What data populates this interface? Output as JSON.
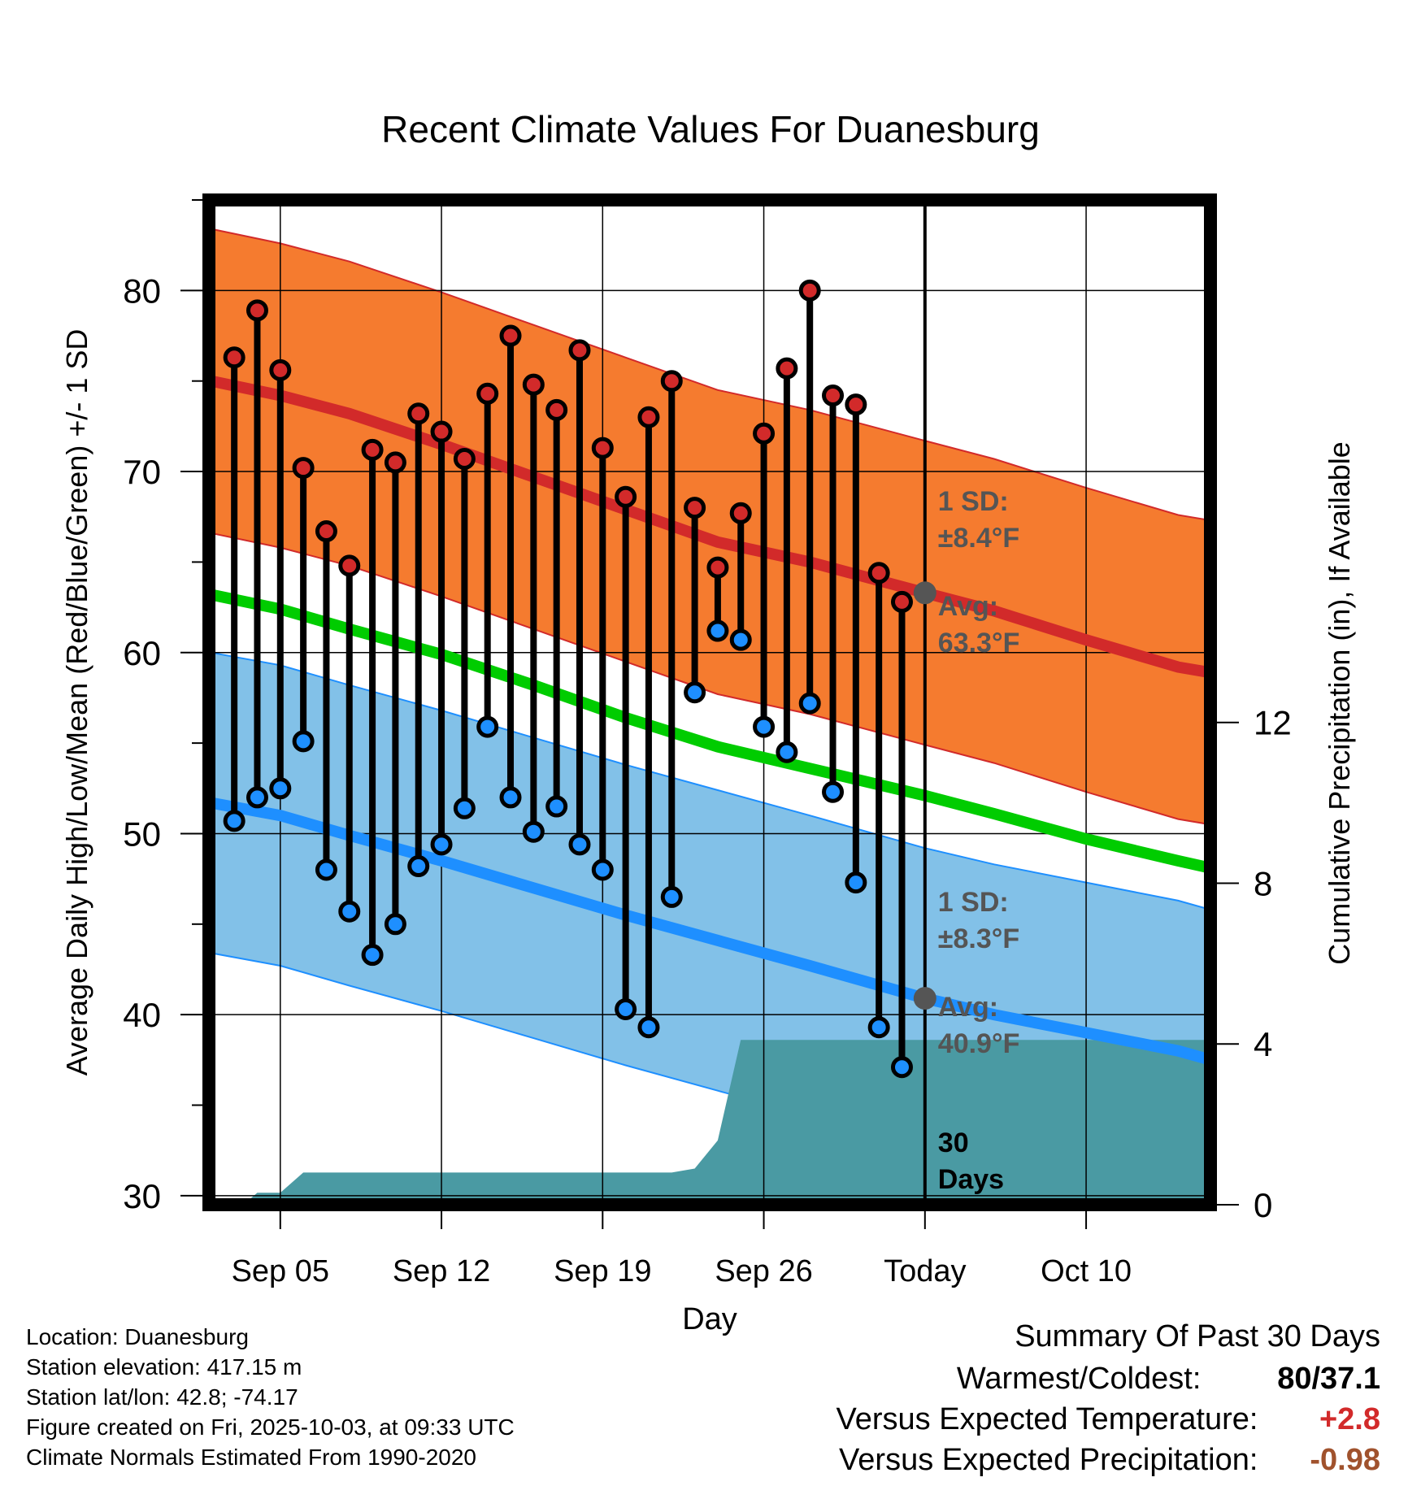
{
  "chart_data": {
    "type": "line",
    "title": "Recent Climate Values For Duanesburg",
    "xlabel": "Day",
    "ylabel": "Average Daily High/Low/Mean (Red/Blue/Green) +/- 1 SD",
    "y2label": "Cumulative Precipitation (in), If Available",
    "ylim": [
      29.5,
      85
    ],
    "y2lim": [
      0,
      25
    ],
    "xlim": [
      1.9,
      45.4
    ],
    "yticks": [
      30,
      40,
      50,
      60,
      70,
      80
    ],
    "y2ticks": [
      0,
      4,
      8,
      12
    ],
    "xticks": [
      {
        "day": 5,
        "label": "Sep 05"
      },
      {
        "day": 12,
        "label": "Sep 12"
      },
      {
        "day": 19,
        "label": "Sep 19"
      },
      {
        "day": 26,
        "label": "Sep 26"
      },
      {
        "day": 33,
        "label": "Today"
      },
      {
        "day": 40,
        "label": "Oct 10"
      }
    ],
    "today_day": 33,
    "days": [
      3,
      4,
      5,
      6,
      7,
      8,
      9,
      10,
      11,
      12,
      13,
      14,
      15,
      16,
      17,
      18,
      19,
      20,
      21,
      22,
      23,
      24,
      25,
      26,
      27,
      28,
      29,
      30,
      31,
      32
    ],
    "daily_high": [
      76.3,
      78.9,
      75.6,
      70.2,
      66.7,
      64.8,
      71.2,
      70.5,
      73.2,
      72.2,
      70.7,
      74.3,
      77.5,
      74.8,
      73.4,
      76.7,
      71.3,
      68.6,
      73.0,
      75.0,
      68.0,
      64.7,
      67.7,
      72.1,
      75.7,
      80.0,
      74.2,
      73.7,
      64.4,
      62.8
    ],
    "daily_low": [
      50.7,
      52.0,
      52.5,
      55.1,
      48.0,
      45.7,
      43.3,
      45.0,
      48.2,
      49.4,
      51.4,
      55.9,
      52.0,
      50.1,
      51.5,
      49.4,
      48.0,
      40.3,
      39.3,
      46.5,
      57.8,
      61.2,
      60.7,
      55.9,
      54.5,
      57.2,
      52.3,
      47.3,
      39.3,
      37.1
    ],
    "normal_high": [
      {
        "day": 2,
        "value": 75.0
      },
      {
        "day": 5,
        "value": 74.2
      },
      {
        "day": 8,
        "value": 73.2
      },
      {
        "day": 12,
        "value": 71.5
      },
      {
        "day": 16,
        "value": 69.7
      },
      {
        "day": 20,
        "value": 67.9
      },
      {
        "day": 24,
        "value": 66.1
      },
      {
        "day": 28,
        "value": 65.0
      },
      {
        "day": 33,
        "value": 63.3
      },
      {
        "day": 36,
        "value": 62.3
      },
      {
        "day": 40,
        "value": 60.7
      },
      {
        "day": 44,
        "value": 59.2
      },
      {
        "day": 45.4,
        "value": 58.9
      }
    ],
    "normal_low": [
      {
        "day": 2,
        "value": 51.7
      },
      {
        "day": 5,
        "value": 51.0
      },
      {
        "day": 8,
        "value": 49.9
      },
      {
        "day": 12,
        "value": 48.5
      },
      {
        "day": 16,
        "value": 47.0
      },
      {
        "day": 20,
        "value": 45.5
      },
      {
        "day": 24,
        "value": 44.1
      },
      {
        "day": 28,
        "value": 42.7
      },
      {
        "day": 33,
        "value": 40.9
      },
      {
        "day": 36,
        "value": 40.0
      },
      {
        "day": 40,
        "value": 39.0
      },
      {
        "day": 44,
        "value": 38.0
      },
      {
        "day": 45.4,
        "value": 37.5
      }
    ],
    "normal_mean": [
      {
        "day": 2,
        "value": 63.2
      },
      {
        "day": 5,
        "value": 62.4
      },
      {
        "day": 8,
        "value": 61.3
      },
      {
        "day": 12,
        "value": 59.9
      },
      {
        "day": 16,
        "value": 58.2
      },
      {
        "day": 20,
        "value": 56.4
      },
      {
        "day": 24,
        "value": 54.8
      },
      {
        "day": 28,
        "value": 53.6
      },
      {
        "day": 33,
        "value": 52.1
      },
      {
        "day": 36,
        "value": 51.1
      },
      {
        "day": 40,
        "value": 49.7
      },
      {
        "day": 44,
        "value": 48.5
      },
      {
        "day": 45.4,
        "value": 48.1
      }
    ],
    "high_sd": 8.4,
    "low_sd": 8.3,
    "precip_cumulative": [
      {
        "day": 3.4,
        "value": 0
      },
      {
        "day": 4.0,
        "value": 0.3
      },
      {
        "day": 5.0,
        "value": 0.3
      },
      {
        "day": 6.0,
        "value": 0.8
      },
      {
        "day": 21.0,
        "value": 0.8
      },
      {
        "day": 22.0,
        "value": 0.8
      },
      {
        "day": 23.0,
        "value": 0.9
      },
      {
        "day": 24.0,
        "value": 1.6
      },
      {
        "day": 25.0,
        "value": 4.1
      },
      {
        "day": 45.4,
        "value": 4.1
      }
    ],
    "annotations": {
      "high_sd_label": "1 SD:",
      "high_sd_value": "±8.4°F",
      "high_avg_label": "Avg:",
      "high_avg_value": "63.3°F",
      "low_sd_label": "1 SD:",
      "low_sd_value": "±8.3°F",
      "low_avg_label": "Avg:",
      "low_avg_value": "40.9°F",
      "window_number": "30",
      "window_unit": "Days"
    },
    "colors": {
      "high_band": "#f57b2f",
      "high_line": "#d22a2a",
      "low_band": "#82c1e8",
      "low_line": "#1e8fff",
      "mean_line": "#00cc00",
      "precip": "#4a9aa3",
      "high_dot": "#d22a2a",
      "low_dot": "#1e8fff",
      "today_dot": "#555555",
      "annotation": "#555555"
    }
  },
  "station_info": {
    "location": "Location: Duanesburg",
    "elevation": "Station elevation: 417.15 m",
    "latlon": "Station lat/lon: 42.8; -74.17",
    "created": "Figure created on Fri, 2025-10-03, at 09:33 UTC",
    "normals": "Climate Normals Estimated From 1990-2020"
  },
  "summary": {
    "title": "Summary Of Past 30 Days",
    "warmest_coldest_label": "Warmest/Coldest:",
    "warmest_coldest_value": "80/37.1",
    "temp_label": "Versus Expected Temperature:",
    "temp_value": "+2.8",
    "temp_color": "#d22a2a",
    "precip_label": "Versus Expected Precipitation:",
    "precip_value": "-0.98",
    "precip_color": "#a0522d"
  }
}
